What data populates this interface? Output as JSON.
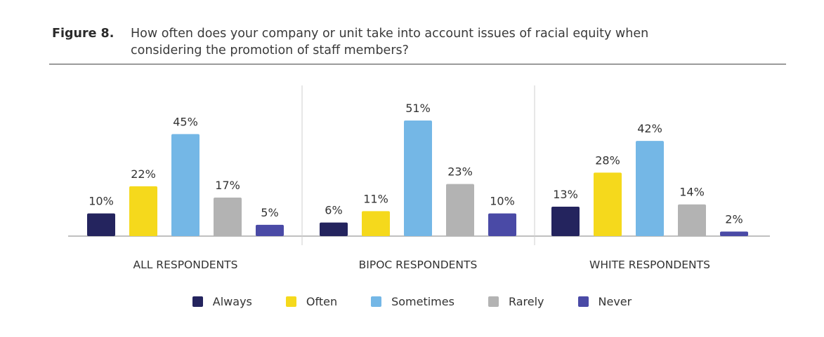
{
  "figure": {
    "label": "Figure 8.",
    "title_line1": "How often does your company or unit take into account issues of racial equity when",
    "title_line2": "considering the promotion of staff members?"
  },
  "chart_data": {
    "type": "bar",
    "groups": [
      "ALL RESPONDENTS",
      "BIPOC RESPONDENTS",
      "WHITE RESPONDENTS"
    ],
    "series": [
      {
        "name": "Always",
        "color": "#24245e",
        "values": [
          10,
          6,
          13
        ]
      },
      {
        "name": "Often",
        "color": "#f5d91c",
        "values": [
          22,
          11,
          28
        ]
      },
      {
        "name": "Sometimes",
        "color": "#74b7e6",
        "values": [
          45,
          51,
          42
        ]
      },
      {
        "name": "Rarely",
        "color": "#b3b3b3",
        "values": [
          17,
          23,
          14
        ]
      },
      {
        "name": "Never",
        "color": "#4a4aa6",
        "values": [
          5,
          10,
          2
        ]
      }
    ],
    "value_suffix": "%",
    "ylim": [
      0,
      51
    ],
    "legend_position": "bottom",
    "grid": false
  }
}
